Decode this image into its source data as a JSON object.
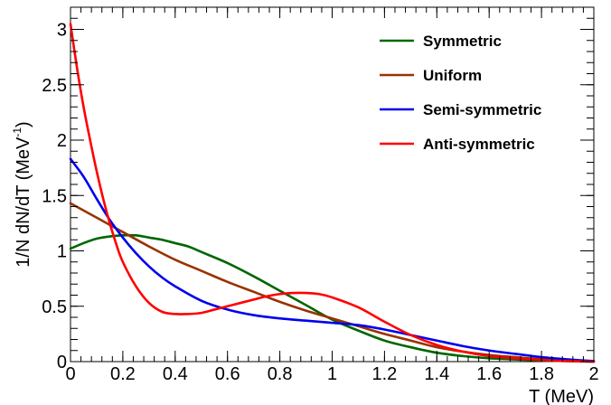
{
  "chart_data": {
    "type": "line",
    "title": "",
    "xlabel": "T (MeV)",
    "ylabel": {
      "main": "1/N dN/dT (MeV",
      "sup": "-1",
      "close": ")"
    },
    "xlim": [
      0,
      2
    ],
    "ylim": [
      0,
      3.2
    ],
    "x_ticks": [
      0,
      0.2,
      0.4,
      0.6,
      0.8,
      1,
      1.2,
      1.4,
      1.6,
      1.8,
      2
    ],
    "x_tick_labels": [
      "0",
      "0.2",
      "0.4",
      "0.6",
      "0.8",
      "1",
      "1.2",
      "1.4",
      "1.6",
      "1.8",
      "2"
    ],
    "y_ticks": [
      0,
      0.5,
      1,
      1.5,
      2,
      2.5,
      3
    ],
    "y_tick_labels": [
      "0",
      "0.5",
      "1",
      "1.5",
      "2",
      "2.5",
      "3"
    ],
    "grid": false,
    "legend_position": "top-right",
    "series": [
      {
        "name": "Symmetric",
        "color": "#006600",
        "x": [
          0,
          0.05,
          0.1,
          0.15,
          0.2,
          0.25,
          0.3,
          0.35,
          0.4,
          0.45,
          0.5,
          0.6,
          0.7,
          0.8,
          0.9,
          1.0,
          1.1,
          1.2,
          1.3,
          1.4,
          1.5,
          1.6,
          1.7,
          1.8,
          1.9,
          2.0
        ],
        "y": [
          1.02,
          1.07,
          1.11,
          1.13,
          1.14,
          1.14,
          1.12,
          1.1,
          1.07,
          1.04,
          0.99,
          0.89,
          0.77,
          0.64,
          0.51,
          0.38,
          0.28,
          0.19,
          0.13,
          0.08,
          0.05,
          0.03,
          0.02,
          0.01,
          0.005,
          0.0
        ]
      },
      {
        "name": "Uniform",
        "color": "#993300",
        "x": [
          0,
          0.1,
          0.2,
          0.3,
          0.4,
          0.5,
          0.6,
          0.7,
          0.8,
          0.9,
          1.0,
          1.1,
          1.2,
          1.3,
          1.4,
          1.5,
          1.6,
          1.7,
          1.8,
          1.9,
          2.0
        ],
        "y": [
          1.43,
          1.3,
          1.17,
          1.04,
          0.92,
          0.82,
          0.72,
          0.63,
          0.54,
          0.46,
          0.39,
          0.32,
          0.25,
          0.19,
          0.13,
          0.09,
          0.06,
          0.04,
          0.02,
          0.01,
          0.0
        ]
      },
      {
        "name": "Semi-symmetric",
        "color": "#0000ee",
        "x": [
          0,
          0.05,
          0.1,
          0.15,
          0.2,
          0.25,
          0.3,
          0.35,
          0.4,
          0.5,
          0.6,
          0.7,
          0.8,
          0.9,
          1.0,
          1.1,
          1.2,
          1.3,
          1.4,
          1.5,
          1.6,
          1.7,
          1.8,
          1.9,
          2.0
        ],
        "y": [
          1.83,
          1.67,
          1.47,
          1.28,
          1.12,
          0.98,
          0.86,
          0.76,
          0.68,
          0.55,
          0.47,
          0.42,
          0.39,
          0.37,
          0.35,
          0.33,
          0.29,
          0.24,
          0.19,
          0.14,
          0.1,
          0.07,
          0.04,
          0.02,
          0.005
        ]
      },
      {
        "name": "Anti-symmetric",
        "color": "#ff0000",
        "x": [
          0,
          0.025,
          0.05,
          0.075,
          0.1,
          0.125,
          0.15,
          0.175,
          0.2,
          0.25,
          0.3,
          0.35,
          0.4,
          0.45,
          0.5,
          0.55,
          0.6,
          0.65,
          0.7,
          0.75,
          0.8,
          0.85,
          0.9,
          0.95,
          1.0,
          1.1,
          1.2,
          1.3,
          1.4,
          1.5,
          1.6,
          1.7,
          1.8,
          1.9,
          2.0
        ],
        "y": [
          3.05,
          2.65,
          2.3,
          2.0,
          1.72,
          1.47,
          1.25,
          1.06,
          0.9,
          0.68,
          0.53,
          0.45,
          0.43,
          0.43,
          0.44,
          0.47,
          0.5,
          0.53,
          0.56,
          0.59,
          0.61,
          0.62,
          0.62,
          0.61,
          0.58,
          0.49,
          0.36,
          0.24,
          0.15,
          0.09,
          0.05,
          0.03,
          0.015,
          0.005,
          0.0
        ]
      }
    ]
  }
}
